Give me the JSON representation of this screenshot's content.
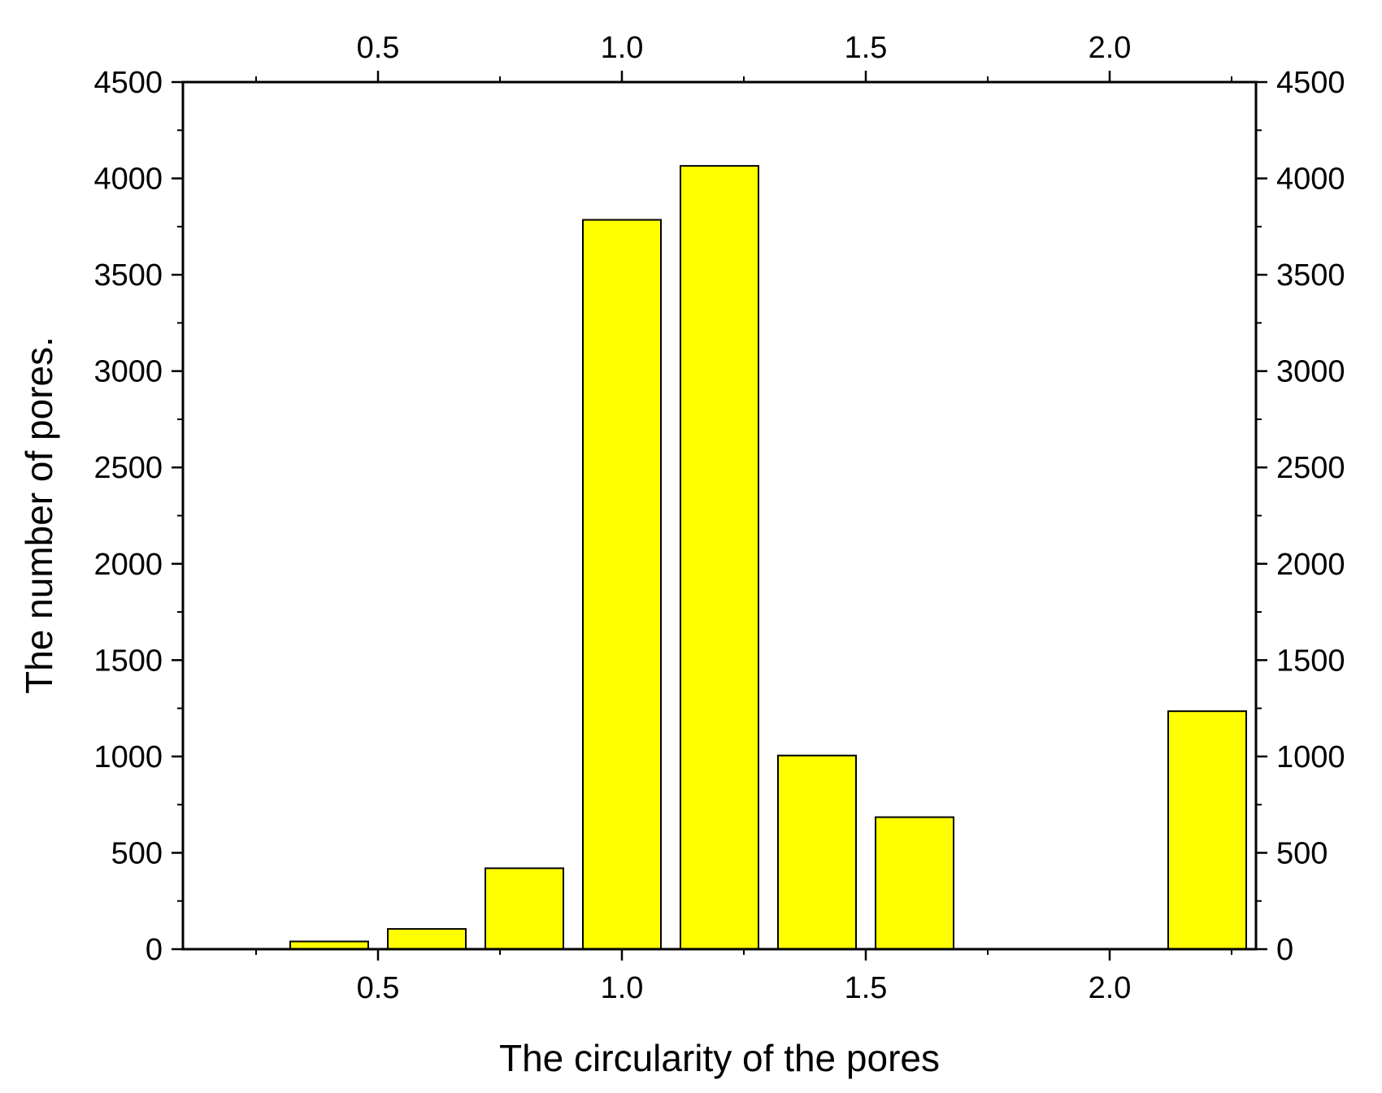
{
  "chart_data": {
    "type": "bar",
    "xlabel": "The circularity of the pores",
    "ylabel": "The number of pores.",
    "xlim": [
      0.1,
      2.3
    ],
    "ylim": [
      0,
      4500
    ],
    "x_ticks": [
      0.5,
      1.0,
      1.5,
      2.0
    ],
    "x_tick_labels": [
      "0.5",
      "1.0",
      "1.5",
      "2.0"
    ],
    "y_ticks": [
      0,
      500,
      1000,
      1500,
      2000,
      2500,
      3000,
      3500,
      4000,
      4500
    ],
    "y_tick_labels": [
      "0",
      "500",
      "1000",
      "1500",
      "2000",
      "2500",
      "3000",
      "3500",
      "4000",
      "4500"
    ],
    "mirror_axes": true,
    "grid": false,
    "bar_width": 0.16,
    "bar_color": "#ffff00",
    "bar_edge_color": "#000000",
    "bars": [
      {
        "x": 0.4,
        "value": 40
      },
      {
        "x": 0.6,
        "value": 105
      },
      {
        "x": 0.8,
        "value": 420
      },
      {
        "x": 1.0,
        "value": 3785
      },
      {
        "x": 1.2,
        "value": 4065
      },
      {
        "x": 1.4,
        "value": 1005
      },
      {
        "x": 1.6,
        "value": 685
      },
      {
        "x": 1.8,
        "value": 0
      },
      {
        "x": 2.0,
        "value": 0
      },
      {
        "x": 2.2,
        "value": 1235
      }
    ]
  }
}
